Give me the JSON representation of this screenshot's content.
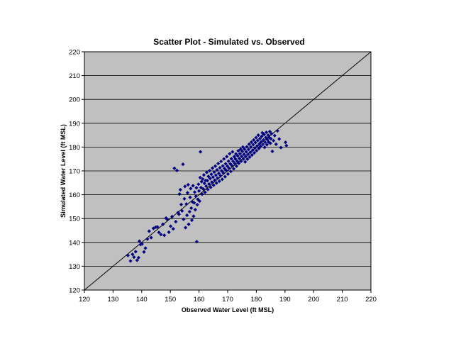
{
  "chart_data": {
    "type": "scatter",
    "title": "Scatter Plot - Simulated vs. Observed",
    "xlabel": "Observed Water Level (ft MSL)",
    "ylabel": "Simulated Water Level (ft MSL)",
    "xlim": [
      120,
      220
    ],
    "ylim": [
      120,
      220
    ],
    "x_ticks": [
      120,
      130,
      140,
      150,
      160,
      170,
      180,
      190,
      200,
      210,
      220
    ],
    "y_ticks": [
      120,
      130,
      140,
      150,
      160,
      170,
      180,
      190,
      200,
      210,
      220
    ],
    "grid": "horizontal",
    "legend": "none",
    "plot_background": "#c0c0c0",
    "marker_color": "#000080",
    "marker": "diamond",
    "reference_line": {
      "from": [
        120,
        120
      ],
      "to": [
        220,
        220
      ],
      "color": "#000000"
    },
    "series": [
      {
        "points": [
          [
            135.2,
            134.5
          ],
          [
            136.1,
            132.2
          ],
          [
            136.8,
            135.0
          ],
          [
            137.3,
            133.8
          ],
          [
            137.9,
            136.1
          ],
          [
            138.4,
            132.5
          ],
          [
            138.9,
            133.6
          ],
          [
            139.2,
            140.5
          ],
          [
            139.6,
            139.1
          ],
          [
            140.1,
            139.3
          ],
          [
            140.8,
            136.0
          ],
          [
            141.3,
            137.6
          ],
          [
            142.0,
            141.4
          ],
          [
            142.6,
            144.7
          ],
          [
            143.3,
            142.0
          ],
          [
            144.1,
            145.9
          ],
          [
            144.9,
            146.4
          ],
          [
            145.5,
            146.5
          ],
          [
            146.0,
            144.2
          ],
          [
            146.7,
            143.3
          ],
          [
            147.4,
            147.6
          ],
          [
            147.9,
            143.0
          ],
          [
            148.5,
            150.2
          ],
          [
            148.9,
            149.6
          ],
          [
            149.5,
            144.3
          ],
          [
            150.1,
            146.8
          ],
          [
            150.6,
            150.8
          ],
          [
            151.0,
            145.7
          ],
          [
            151.4,
            171.1
          ],
          [
            151.9,
            148.7
          ],
          [
            152.3,
            170.2
          ],
          [
            152.7,
            152.5
          ],
          [
            153.0,
            151.8
          ],
          [
            153.2,
            160.3
          ],
          [
            153.5,
            162.1
          ],
          [
            153.8,
            155.9
          ],
          [
            154.1,
            153.2
          ],
          [
            154.4,
            172.8
          ],
          [
            154.6,
            149.7
          ],
          [
            154.9,
            158.3
          ],
          [
            155.1,
            163.5
          ],
          [
            155.3,
            146.2
          ],
          [
            155.6,
            156.1
          ],
          [
            155.8,
            151.4
          ],
          [
            156.0,
            160.8
          ],
          [
            156.2,
            164.2
          ],
          [
            156.4,
            147.6
          ],
          [
            156.7,
            152.9
          ],
          [
            156.9,
            158.9
          ],
          [
            157.1,
            162.6
          ],
          [
            157.3,
            154.4
          ],
          [
            157.5,
            149.3
          ],
          [
            157.7,
            157.0
          ],
          [
            157.9,
            163.8
          ],
          [
            158.1,
            151.0
          ],
          [
            158.3,
            156.6
          ],
          [
            158.5,
            161.1
          ],
          [
            158.7,
            153.7
          ],
          [
            158.9,
            159.4
          ],
          [
            159.1,
            162.9
          ],
          [
            159.2,
            140.3
          ],
          [
            159.4,
            155.8
          ],
          [
            159.6,
            158.1
          ],
          [
            159.8,
            164.4
          ],
          [
            160.0,
            161.6
          ],
          [
            160.2,
            157.3
          ],
          [
            160.4,
            167.2
          ],
          [
            160.5,
            178.0
          ],
          [
            160.7,
            163.0
          ],
          [
            160.9,
            165.5
          ],
          [
            161.1,
            160.2
          ],
          [
            161.3,
            166.6
          ],
          [
            161.5,
            162.4
          ],
          [
            161.7,
            168.3
          ],
          [
            161.9,
            164.8
          ],
          [
            162.1,
            161.0
          ],
          [
            162.3,
            166.0
          ],
          [
            162.5,
            163.6
          ],
          [
            162.7,
            169.4
          ],
          [
            162.9,
            165.9
          ],
          [
            163.1,
            162.2
          ],
          [
            163.3,
            167.7
          ],
          [
            163.5,
            164.5
          ],
          [
            163.7,
            170.1
          ],
          [
            163.9,
            166.8
          ],
          [
            164.1,
            163.1
          ],
          [
            164.3,
            168.6
          ],
          [
            164.5,
            165.3
          ],
          [
            164.7,
            171.2
          ],
          [
            164.9,
            167.4
          ],
          [
            165.1,
            164.0
          ],
          [
            165.3,
            169.5
          ],
          [
            165.5,
            166.1
          ],
          [
            165.7,
            172.0
          ],
          [
            165.9,
            168.2
          ],
          [
            166.1,
            164.9
          ],
          [
            166.3,
            170.4
          ],
          [
            166.5,
            167.0
          ],
          [
            166.7,
            173.1
          ],
          [
            166.9,
            169.0
          ],
          [
            167.1,
            165.7
          ],
          [
            167.3,
            171.3
          ],
          [
            167.5,
            168.0
          ],
          [
            167.7,
            174.0
          ],
          [
            167.9,
            170.0
          ],
          [
            168.1,
            166.5
          ],
          [
            168.3,
            172.1
          ],
          [
            168.5,
            169.1
          ],
          [
            168.7,
            175.0
          ],
          [
            168.9,
            171.0
          ],
          [
            169.1,
            167.6
          ],
          [
            169.3,
            173.0
          ],
          [
            169.5,
            170.2
          ],
          [
            169.7,
            176.0
          ],
          [
            169.9,
            172.0
          ],
          [
            170.1,
            168.7
          ],
          [
            170.3,
            174.1
          ],
          [
            170.5,
            171.1
          ],
          [
            170.7,
            177.2
          ],
          [
            170.9,
            173.0
          ],
          [
            171.1,
            169.8
          ],
          [
            171.3,
            175.1
          ],
          [
            171.5,
            172.2
          ],
          [
            171.7,
            178.0
          ],
          [
            171.9,
            174.0
          ],
          [
            172.1,
            170.9
          ],
          [
            172.3,
            176.0
          ],
          [
            172.5,
            173.1
          ],
          [
            172.7,
            175.0
          ],
          [
            172.9,
            177.1
          ],
          [
            173.1,
            172.0
          ],
          [
            173.3,
            174.1
          ],
          [
            173.5,
            176.3
          ],
          [
            173.7,
            178.4
          ],
          [
            173.9,
            173.2
          ],
          [
            174.1,
            175.2
          ],
          [
            174.3,
            177.2
          ],
          [
            174.5,
            179.1
          ],
          [
            174.7,
            174.1
          ],
          [
            174.9,
            176.1
          ],
          [
            175.1,
            178.2
          ],
          [
            175.3,
            180.0
          ],
          [
            175.5,
            175.0
          ],
          [
            175.7,
            177.0
          ],
          [
            175.9,
            179.1
          ],
          [
            176.1,
            173.8
          ],
          [
            176.3,
            176.0
          ],
          [
            176.5,
            178.0
          ],
          [
            176.7,
            180.1
          ],
          [
            176.9,
            174.9
          ],
          [
            177.1,
            176.9
          ],
          [
            177.3,
            179.0
          ],
          [
            177.5,
            181.2
          ],
          [
            177.7,
            175.8
          ],
          [
            177.9,
            177.8
          ],
          [
            178.1,
            180.0
          ],
          [
            178.3,
            182.1
          ],
          [
            178.5,
            176.7
          ],
          [
            178.7,
            178.7
          ],
          [
            178.9,
            181.0
          ],
          [
            179.1,
            183.0
          ],
          [
            179.3,
            177.6
          ],
          [
            179.5,
            179.6
          ],
          [
            179.7,
            181.9
          ],
          [
            179.9,
            184.0
          ],
          [
            180.1,
            178.5
          ],
          [
            180.3,
            180.5
          ],
          [
            180.5,
            182.8
          ],
          [
            180.7,
            185.0
          ],
          [
            180.9,
            179.4
          ],
          [
            181.1,
            181.4
          ],
          [
            181.3,
            183.6
          ],
          [
            181.5,
            180.3
          ],
          [
            181.7,
            182.2
          ],
          [
            181.9,
            184.5
          ],
          [
            182.1,
            186.0
          ],
          [
            182.3,
            181.1
          ],
          [
            182.5,
            183.0
          ],
          [
            182.7,
            185.3
          ],
          [
            182.9,
            179.9
          ],
          [
            183.1,
            182.0
          ],
          [
            183.3,
            184.0
          ],
          [
            183.5,
            186.2
          ],
          [
            183.7,
            181.0
          ],
          [
            183.9,
            183.1
          ],
          [
            184.1,
            185.0
          ],
          [
            184.3,
            182.1
          ],
          [
            184.5,
            184.1
          ],
          [
            184.7,
            186.5
          ],
          [
            184.9,
            181.6
          ],
          [
            185.1,
            183.5
          ],
          [
            185.3,
            185.6
          ],
          [
            185.6,
            178.2
          ],
          [
            186.0,
            182.7
          ],
          [
            186.4,
            184.8
          ],
          [
            186.9,
            181.2
          ],
          [
            187.4,
            186.8
          ],
          [
            188.0,
            183.4
          ],
          [
            188.6,
            179.8
          ],
          [
            190.2,
            182.0
          ],
          [
            190.5,
            180.6
          ]
        ]
      }
    ]
  }
}
